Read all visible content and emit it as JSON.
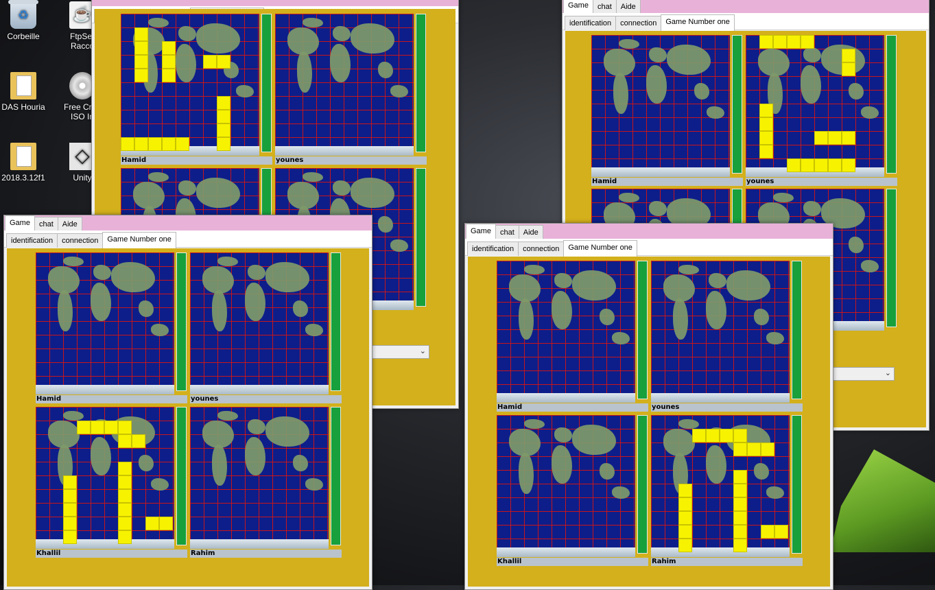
{
  "desktop": {
    "icons": [
      {
        "label": "Corbeille",
        "icon": "recycle-bin-icon"
      },
      {
        "label": "FtpSer\nRacco",
        "icon": "java-app-icon"
      },
      {
        "label": "DAS Houria",
        "icon": "folder-icon"
      },
      {
        "label": "Free Crea\nISO In",
        "icon": "disc-icon"
      },
      {
        "label": "2018.3.12f1",
        "icon": "folder-icon"
      },
      {
        "label": "Unity",
        "icon": "unity-icon"
      }
    ]
  },
  "window": {
    "tabs": [
      "Game",
      "chat",
      "Aide"
    ],
    "subtabs": [
      "identification",
      "connection",
      "Game Number one"
    ]
  },
  "players_top": [
    "Hamid",
    "younes"
  ],
  "players_bottom": [
    "Khallil",
    "Rahim"
  ],
  "colors": {
    "titlebar": "#e8b2d8",
    "panel": "#d3b01c",
    "ocean": "#0d1e8a",
    "grid": "#d21414",
    "ship": "#f7f200",
    "bar": "#18a03c"
  },
  "ships": {
    "hamid_a": [
      [
        1,
        1
      ],
      [
        1,
        2
      ],
      [
        1,
        3
      ],
      [
        1,
        4
      ],
      [
        3,
        2
      ],
      [
        3,
        3
      ],
      [
        3,
        4
      ],
      [
        6,
        3
      ],
      [
        7,
        3
      ],
      [
        7,
        6
      ],
      [
        7,
        7
      ],
      [
        7,
        8
      ],
      [
        7,
        9
      ],
      [
        0,
        9
      ],
      [
        1,
        9
      ],
      [
        2,
        9
      ],
      [
        3,
        9
      ],
      [
        4,
        9
      ]
    ],
    "younes_b": [
      [
        1,
        0
      ],
      [
        2,
        0
      ],
      [
        3,
        0
      ],
      [
        4,
        0
      ],
      [
        7,
        1
      ],
      [
        7,
        2
      ],
      [
        1,
        5
      ],
      [
        1,
        6
      ],
      [
        1,
        7
      ],
      [
        1,
        8
      ],
      [
        5,
        7
      ],
      [
        6,
        7
      ],
      [
        7,
        7
      ],
      [
        3,
        9
      ],
      [
        4,
        9
      ],
      [
        5,
        9
      ],
      [
        6,
        9
      ],
      [
        7,
        9
      ]
    ],
    "khallil_c": [
      [
        3,
        1
      ],
      [
        4,
        1
      ],
      [
        5,
        1
      ],
      [
        6,
        1
      ],
      [
        6,
        2
      ],
      [
        7,
        2
      ],
      [
        2,
        5
      ],
      [
        2,
        6
      ],
      [
        2,
        7
      ],
      [
        2,
        8
      ],
      [
        2,
        9
      ],
      [
        6,
        4
      ],
      [
        6,
        5
      ],
      [
        6,
        6
      ],
      [
        6,
        7
      ],
      [
        6,
        8
      ],
      [
        6,
        9
      ],
      [
        8,
        8
      ],
      [
        9,
        8
      ]
    ],
    "rahim_d": [
      [
        3,
        1
      ],
      [
        4,
        1
      ],
      [
        5,
        1
      ],
      [
        6,
        1
      ],
      [
        6,
        2
      ],
      [
        7,
        2
      ],
      [
        8,
        2
      ],
      [
        2,
        5
      ],
      [
        2,
        6
      ],
      [
        2,
        7
      ],
      [
        2,
        8
      ],
      [
        2,
        9
      ],
      [
        6,
        4
      ],
      [
        6,
        5
      ],
      [
        6,
        6
      ],
      [
        6,
        7
      ],
      [
        6,
        8
      ],
      [
        6,
        9
      ],
      [
        8,
        8
      ],
      [
        9,
        8
      ]
    ]
  }
}
